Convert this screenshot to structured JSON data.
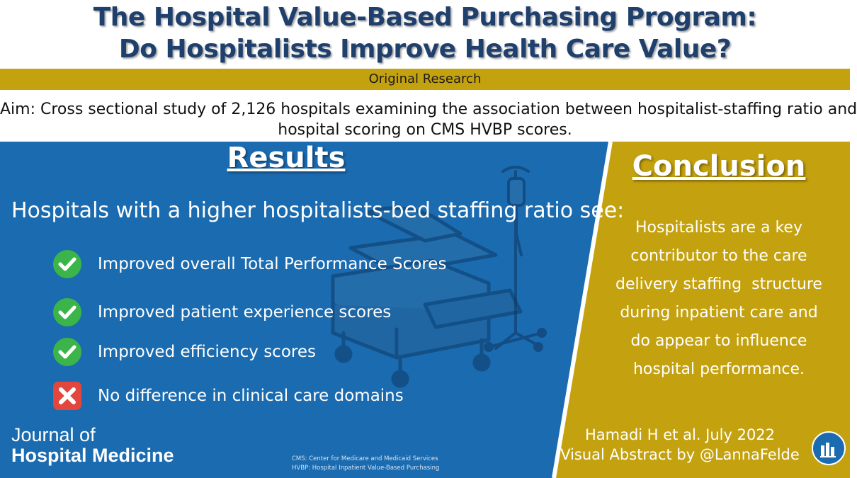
{
  "header": {
    "title_line1": "The Hospital Value-Based Purchasing Program:",
    "title_line2": "Do Hospitalists Improve Health Care Value?",
    "subtitle": "Original Research",
    "aim_line1": "Aim: Cross sectional study of 2,126 hospitals examining the association between hospitalist-staffing ratio and",
    "aim_line2": "hospital scoring on CMS HVBP scores."
  },
  "results": {
    "heading": "Results",
    "intro": "Hospitals with a higher hospitalists-bed staffing ratio see:",
    "items": [
      {
        "text": "Improved overall Total Performance Scores",
        "icon": "check-icon"
      },
      {
        "text": "Improved patient experience scores",
        "icon": "check-icon"
      },
      {
        "text": "Improved efficiency scores",
        "icon": "check-icon"
      },
      {
        "text": "No difference in clinical care domains",
        "icon": "x-icon"
      }
    ]
  },
  "conclusion": {
    "heading": "Conclusion",
    "line1": "Hospitalists are a key",
    "line2": "contributor to the care",
    "line3": "delivery staffing  structure",
    "line4": "during inpatient care and",
    "line5": "do appear to influence",
    "line6": "hospital performance."
  },
  "citation": {
    "line1": "Hamadi H et al. July 2022",
    "line2": "Visual Abstract by @LannaFelde"
  },
  "journal": {
    "line1": "Journal of",
    "line2": "Hospital Medicine"
  },
  "footnotes": {
    "cms": "CMS: Center for Medicare and Medicaid Services",
    "hvbp": "HVBP: Hospital Inpatient Value-Based Purchasing"
  },
  "colors": {
    "blue_panel": "#1a6bb0",
    "gold_panel": "#c4a10e",
    "title_navy": "#1f3f6c",
    "check_green": "#3bb54a",
    "x_red": "#e2463c"
  },
  "icons": {
    "hospital_bed": "hospital-bed-icon",
    "iv_stand": "iv-stand-icon",
    "logo": "journal-logo-icon"
  }
}
